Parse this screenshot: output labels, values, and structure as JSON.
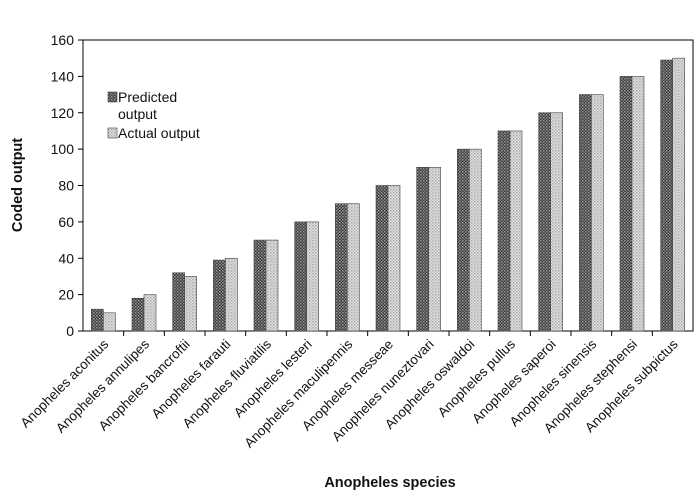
{
  "chart_data": {
    "type": "bar",
    "title": "",
    "xlabel": "Anopheles species",
    "ylabel": "Coded output",
    "ylim": [
      0,
      160
    ],
    "yticks": [
      0,
      20,
      40,
      60,
      80,
      100,
      120,
      140,
      160
    ],
    "grid": false,
    "legend_position": "top-left",
    "categories": [
      "Anopheles aconitus",
      "Anopheles annulipes",
      "Anopheles bancroftii",
      "Anopheles farauti",
      "Anopheles fluviatilis",
      "Anopheles lesteri",
      "Anopheles maculipennis",
      "Anopheles messeae",
      "Anopheles nuneztovari",
      "Anopheles oswaldoi",
      "Anopheles pullus",
      "Anopheles saperoi",
      "Anopheles sinensis",
      "Anopheles stephensi",
      "Anopheles subpictus"
    ],
    "series": [
      {
        "name": "Predicted output",
        "color": "#555555",
        "values": [
          12,
          18,
          32,
          39,
          50,
          60,
          70,
          80,
          90,
          100,
          110,
          120,
          130,
          140,
          149
        ]
      },
      {
        "name": "Actual output",
        "color": "#cfcfcf",
        "values": [
          10,
          20,
          30,
          40,
          50,
          60,
          70,
          80,
          90,
          100,
          110,
          120,
          130,
          140,
          150
        ]
      }
    ]
  }
}
